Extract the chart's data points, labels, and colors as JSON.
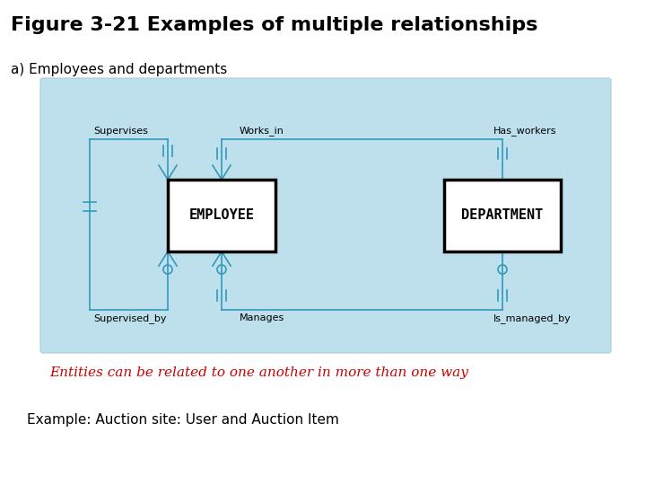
{
  "title": "Figure 3-21 Examples of multiple relationships",
  "subtitle_a": "a) Employees and departments",
  "entity1": "EMPLOYEE",
  "entity2": "DEPARTMENT",
  "rel_top_left": "Supervises",
  "rel_top_mid": "Works_in",
  "rel_top_right": "Has_workers",
  "rel_bot_left": "Supervised_by",
  "rel_bot_mid": "Manages",
  "rel_bot_right": "Is_managed_by",
  "caption": "Entities can be related to one another in more than one way",
  "example": "Example: Auction site: User and Auction Item",
  "bg_color": "#ffffff",
  "diagram_bg": "#bde0ec",
  "line_color": "#3399bb",
  "entity_border": "#000000",
  "entity_fill": "#ffffff",
  "caption_color": "#cc0000",
  "title_fontsize": 16,
  "subtitle_fontsize": 11,
  "entity_fontsize": 11,
  "label_fontsize": 8,
  "caption_fontsize": 11,
  "example_fontsize": 11
}
